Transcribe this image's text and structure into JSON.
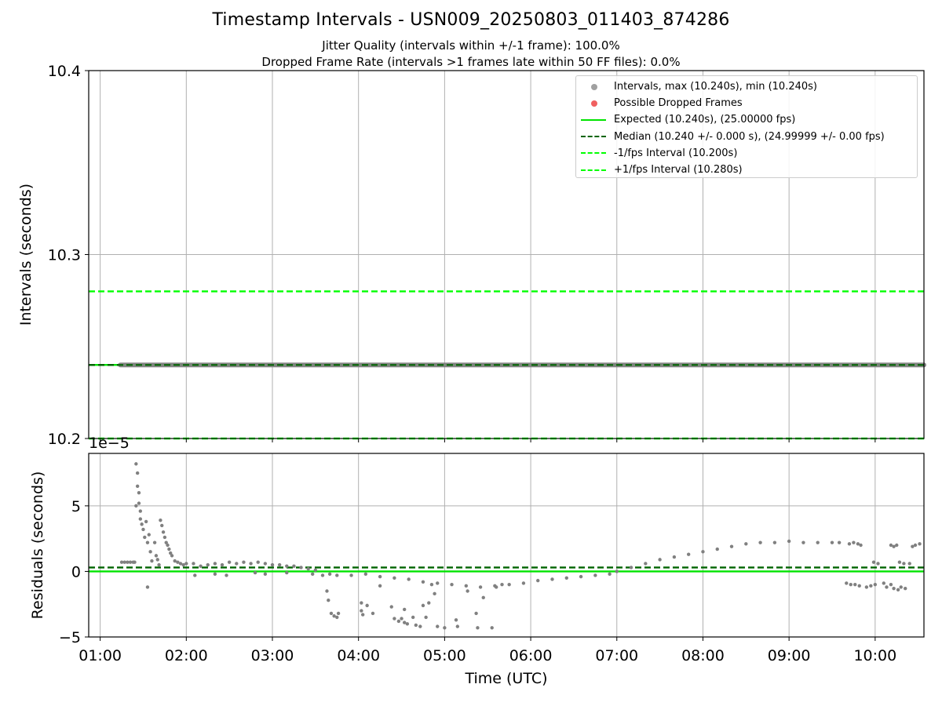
{
  "title": "Timestamp Intervals - USN009_20250803_011403_874286",
  "subtitles": {
    "jitter": "Jitter Quality (intervals within +/-1 frame): 100.0%",
    "dropped": "Dropped Frame Rate (intervals >1 frames late within 50 FF files): 0.0%"
  },
  "colors": {
    "intervals": "#808080",
    "dropped": "#ff0000",
    "expected": "#00e400",
    "median": "#006400",
    "bounds": "#00ff00",
    "grid": "#b0b0b0"
  },
  "legend": [
    {
      "label": "Intervals, max (10.240s), min (10.240s)",
      "kind": "dot",
      "color": "#a0a0a0"
    },
    {
      "label": "Possible Dropped Frames",
      "kind": "dot",
      "color": "#f06060"
    },
    {
      "label": "Expected (10.240s), (25.00000 fps)",
      "kind": "solid",
      "color": "#00e400"
    },
    {
      "label": "Median (10.240 +/- 0.000 s), (24.99999 +/- 0.00 fps)",
      "kind": "dashed",
      "color": "#006400"
    },
    {
      "label": "-1/fps Interval (10.200s)",
      "kind": "dashed",
      "color": "#00ff00"
    },
    {
      "label": "+1/fps Interval (10.280s)",
      "kind": "dashed",
      "color": "#00ff00"
    }
  ],
  "chart_data": [
    {
      "type": "scatter",
      "ylabel": "Intervals (seconds)",
      "ylim": [
        10.2,
        10.4
      ],
      "yticks": [
        "10.2",
        "10.3",
        "10.4"
      ],
      "grid": true,
      "legend_position": "top-right",
      "series": [
        {
          "name": "Intervals, max (10.240s), min (10.240s)",
          "x_range": [
            "01:14",
            "10:34"
          ],
          "value": 10.24
        },
        {
          "name": "Possible Dropped Frames",
          "count": 0
        }
      ],
      "hlines": [
        {
          "name": "Expected (10.240s), (25.00000 fps)",
          "y": 10.24,
          "style": "solid"
        },
        {
          "name": "Median (10.240 +/- 0.000 s), (24.99999 +/- 0.00 fps)",
          "y": 10.24,
          "style": "dashed"
        },
        {
          "name": "-1/fps Interval (10.200s)",
          "y": 10.2,
          "style": "dashed"
        },
        {
          "name": "+1/fps Interval (10.280s)",
          "y": 10.28,
          "style": "dashed"
        }
      ]
    },
    {
      "type": "scatter",
      "xlabel": "Time (UTC)",
      "ylabel": "Residuals (seconds)",
      "offset_label": "1e−5",
      "ylim": [
        -5,
        9
      ],
      "yticks": [
        "−5",
        "0",
        "5"
      ],
      "xlim": [
        "00:52",
        "10:34"
      ],
      "xticks": [
        "01:00",
        "02:00",
        "03:00",
        "04:00",
        "05:00",
        "06:00",
        "07:00",
        "08:00",
        "09:00",
        "10:00"
      ],
      "grid": true,
      "hlines": [
        {
          "name": "Expected",
          "y": 0,
          "style": "solid"
        },
        {
          "name": "Median",
          "y": 0.3,
          "style": "dashed"
        }
      ],
      "series": [
        {
          "name": "Residuals",
          "points": [
            [
              "01:15",
              0.7
            ],
            [
              "01:17",
              0.7
            ],
            [
              "01:19",
              0.7
            ],
            [
              "01:21",
              0.7
            ],
            [
              "01:23",
              0.7
            ],
            [
              "01:24",
              0.7
            ],
            [
              "01:25",
              5.0
            ],
            [
              "01:25",
              8.2
            ],
            [
              "01:26",
              7.5
            ],
            [
              "01:26",
              6.5
            ],
            [
              "01:27",
              6.0
            ],
            [
              "01:27",
              5.2
            ],
            [
              "01:28",
              4.6
            ],
            [
              "01:28",
              4.0
            ],
            [
              "01:29",
              3.6
            ],
            [
              "01:30",
              3.2
            ],
            [
              "01:31",
              2.6
            ],
            [
              "01:32",
              3.8
            ],
            [
              "01:33",
              2.2
            ],
            [
              "01:34",
              2.8
            ],
            [
              "01:35",
              1.5
            ],
            [
              "01:33",
              -1.2
            ],
            [
              "01:36",
              0.8
            ],
            [
              "01:38",
              2.2
            ],
            [
              "01:39",
              1.2
            ],
            [
              "01:40",
              0.9
            ],
            [
              "01:41",
              0.5
            ],
            [
              "01:42",
              3.9
            ],
            [
              "01:43",
              3.5
            ],
            [
              "01:44",
              3.0
            ],
            [
              "01:45",
              2.6
            ],
            [
              "01:46",
              2.2
            ],
            [
              "01:47",
              2.0
            ],
            [
              "01:48",
              1.7
            ],
            [
              "01:49",
              1.4
            ],
            [
              "01:50",
              1.2
            ],
            [
              "01:52",
              0.8
            ],
            [
              "01:54",
              0.7
            ],
            [
              "01:56",
              0.6
            ],
            [
              "01:58",
              0.5
            ],
            [
              "02:00",
              0.6
            ],
            [
              "02:05",
              0.6
            ],
            [
              "02:10",
              0.4
            ],
            [
              "02:15",
              0.5
            ],
            [
              "02:20",
              0.6
            ],
            [
              "02:25",
              0.5
            ],
            [
              "02:30",
              0.7
            ],
            [
              "02:35",
              0.6
            ],
            [
              "02:40",
              0.7
            ],
            [
              "02:45",
              0.6
            ],
            [
              "02:50",
              0.7
            ],
            [
              "02:55",
              0.6
            ],
            [
              "03:00",
              0.5
            ],
            [
              "03:05",
              0.5
            ],
            [
              "03:10",
              0.4
            ],
            [
              "03:15",
              0.4
            ],
            [
              "03:20",
              0.3
            ],
            [
              "03:25",
              0.2
            ],
            [
              "03:30",
              0.1
            ],
            [
              "02:06",
              -0.3
            ],
            [
              "02:20",
              -0.2
            ],
            [
              "02:28",
              -0.3
            ],
            [
              "02:48",
              -0.1
            ],
            [
              "02:55",
              -0.2
            ],
            [
              "03:10",
              -0.1
            ],
            [
              "03:28",
              -0.2
            ],
            [
              "03:35",
              -0.3
            ],
            [
              "03:40",
              -0.2
            ],
            [
              "03:38",
              -1.5
            ],
            [
              "03:39",
              -2.2
            ],
            [
              "03:41",
              -3.2
            ],
            [
              "03:43",
              -3.4
            ],
            [
              "03:45",
              -3.5
            ],
            [
              "03:46",
              -3.2
            ],
            [
              "03:45",
              -0.3
            ],
            [
              "03:55",
              -0.3
            ],
            [
              "04:05",
              -0.2
            ],
            [
              "04:15",
              -0.4
            ],
            [
              "04:25",
              -0.5
            ],
            [
              "04:35",
              -0.6
            ],
            [
              "04:45",
              -0.8
            ],
            [
              "04:55",
              -0.9
            ],
            [
              "05:05",
              -1.0
            ],
            [
              "05:15",
              -1.1
            ],
            [
              "05:25",
              -1.2
            ],
            [
              "05:35",
              -1.1
            ],
            [
              "05:45",
              -1.0
            ],
            [
              "05:55",
              -0.9
            ],
            [
              "06:05",
              -0.7
            ],
            [
              "06:15",
              -0.6
            ],
            [
              "06:25",
              -0.5
            ],
            [
              "06:35",
              -0.4
            ],
            [
              "06:45",
              -0.3
            ],
            [
              "06:55",
              -0.2
            ],
            [
              "04:02",
              -2.4
            ],
            [
              "04:02",
              -3.0
            ],
            [
              "04:03",
              -3.3
            ],
            [
              "04:06",
              -2.6
            ],
            [
              "04:10",
              -3.2
            ],
            [
              "04:15",
              -1.1
            ],
            [
              "04:23",
              -2.7
            ],
            [
              "04:25",
              -3.6
            ],
            [
              "04:28",
              -3.8
            ],
            [
              "04:30",
              -3.6
            ],
            [
              "04:32",
              -3.9
            ],
            [
              "04:34",
              -4.0
            ],
            [
              "04:32",
              -2.9
            ],
            [
              "04:38",
              -3.5
            ],
            [
              "04:40",
              -4.1
            ],
            [
              "04:43",
              -4.2
            ],
            [
              "04:45",
              -2.6
            ],
            [
              "04:47",
              -3.5
            ],
            [
              "04:49",
              -2.4
            ],
            [
              "04:51",
              -1.0
            ],
            [
              "04:53",
              -1.7
            ],
            [
              "04:55",
              -4.2
            ],
            [
              "05:00",
              -4.3
            ],
            [
              "05:08",
              -3.7
            ],
            [
              "05:09",
              -4.2
            ],
            [
              "05:16",
              -1.5
            ],
            [
              "05:22",
              -3.2
            ],
            [
              "05:23",
              -4.3
            ],
            [
              "05:27",
              -2.0
            ],
            [
              "05:33",
              -4.3
            ],
            [
              "05:36",
              -1.2
            ],
            [
              "05:40",
              -1.0
            ],
            [
              "07:00",
              0.0
            ],
            [
              "07:10",
              0.3
            ],
            [
              "07:20",
              0.6
            ],
            [
              "07:30",
              0.9
            ],
            [
              "07:40",
              1.1
            ],
            [
              "07:50",
              1.3
            ],
            [
              "08:00",
              1.5
            ],
            [
              "08:10",
              1.7
            ],
            [
              "08:20",
              1.9
            ],
            [
              "08:30",
              2.1
            ],
            [
              "08:40",
              2.2
            ],
            [
              "08:50",
              2.2
            ],
            [
              "09:00",
              2.3
            ],
            [
              "09:10",
              2.2
            ],
            [
              "09:20",
              2.2
            ],
            [
              "09:30",
              2.2
            ],
            [
              "09:35",
              2.2
            ],
            [
              "09:40",
              -0.9
            ],
            [
              "09:43",
              -1.0
            ],
            [
              "09:46",
              -1.0
            ],
            [
              "09:49",
              -1.1
            ],
            [
              "09:42",
              2.1
            ],
            [
              "09:45",
              2.2
            ],
            [
              "09:48",
              2.1
            ],
            [
              "09:50",
              2.0
            ],
            [
              "09:54",
              -1.2
            ],
            [
              "09:57",
              -1.1
            ],
            [
              "10:00",
              -1.0
            ],
            [
              "10:06",
              -0.9
            ],
            [
              "10:08",
              -1.2
            ],
            [
              "10:11",
              -1.0
            ],
            [
              "10:13",
              -1.3
            ],
            [
              "10:16",
              -1.4
            ],
            [
              "10:18",
              -1.2
            ],
            [
              "10:21",
              -1.3
            ],
            [
              "09:59",
              0.7
            ],
            [
              "10:02",
              0.6
            ],
            [
              "10:11",
              2.0
            ],
            [
              "10:13",
              1.9
            ],
            [
              "10:15",
              2.0
            ],
            [
              "10:17",
              0.7
            ],
            [
              "10:20",
              0.6
            ],
            [
              "10:24",
              0.6
            ],
            [
              "10:26",
              1.9
            ],
            [
              "10:28",
              2.0
            ],
            [
              "10:31",
              2.1
            ]
          ]
        }
      ]
    }
  ]
}
